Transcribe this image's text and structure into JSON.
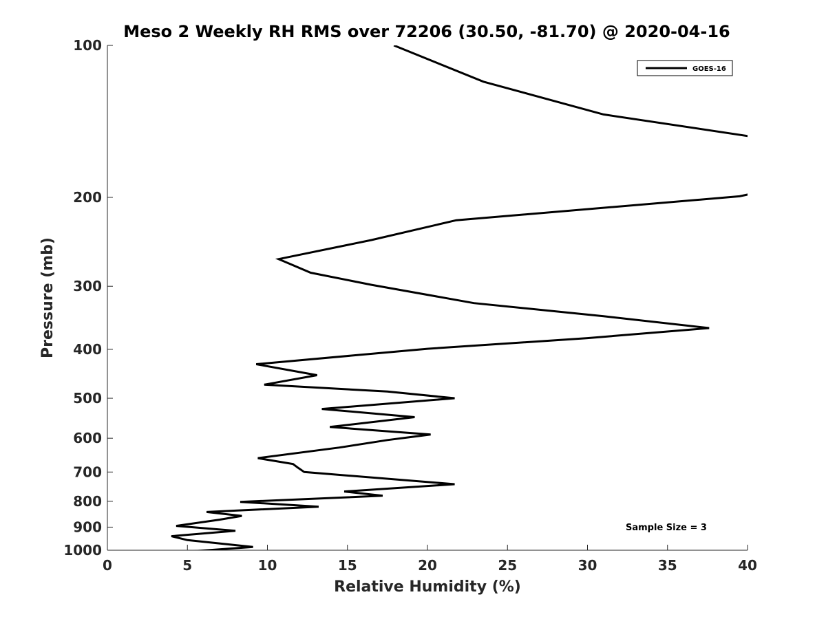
{
  "chart_data": {
    "type": "line",
    "title": "Meso 2 Weekly RH RMS over 72206 (30.50, -81.70) @ 2020-04-16",
    "xlabel": "Relative Humidity (%)",
    "ylabel": "Pressure (mb)",
    "xlim": [
      0,
      40
    ],
    "ylim": [
      1000,
      100
    ],
    "y_scale": "log",
    "y_reversed": true,
    "x_ticks": [
      0,
      5,
      10,
      15,
      20,
      25,
      30,
      35,
      40
    ],
    "y_ticks": [
      100,
      200,
      300,
      400,
      500,
      600,
      700,
      800,
      900,
      1000
    ],
    "grid": false,
    "legend_position": "top-right",
    "annotation": "Sample Size = 3",
    "series": [
      {
        "name": "GOES-16",
        "color": "#000000",
        "x": [
          17.9,
          23.5,
          31.0,
          40.5,
          40.5,
          39.5,
          21.8,
          16.5,
          10.7,
          12.7,
          16.5,
          22.9,
          31.0,
          37.6,
          30.0,
          20.0,
          9.3,
          13.1,
          9.8,
          17.5,
          21.7,
          13.4,
          19.2,
          13.9,
          20.2,
          17.5,
          14.5,
          9.4,
          11.6,
          11.9,
          12.3,
          21.7,
          14.8,
          17.2,
          8.3,
          13.2,
          6.2,
          8.4,
          7.0,
          4.3,
          8.0,
          4.0,
          5.0,
          9.1,
          5.3
        ],
        "y": [
          100,
          118,
          137,
          152,
          196,
          199,
          222,
          243,
          265,
          282,
          298,
          324,
          344,
          363,
          380,
          399,
          428,
          450,
          470,
          485,
          500,
          525,
          545,
          570,
          590,
          605,
          626,
          657,
          675,
          686,
          700,
          740,
          765,
          780,
          802,
          820,
          840,
          855,
          870,
          895,
          915,
          938,
          955,
          985,
          1005
        ]
      }
    ]
  }
}
